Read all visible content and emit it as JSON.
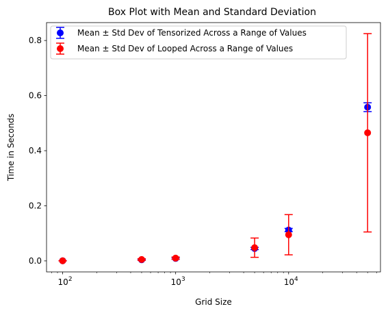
{
  "chart_data": {
    "type": "scatter",
    "title": "Box Plot with Mean and Standard Deviation",
    "xlabel": "Grid Size",
    "ylabel": "Time in Seconds",
    "x_scale": "log",
    "xlim": [
      72,
      65000
    ],
    "ylim": [
      -0.04,
      0.865
    ],
    "x_ticks": [
      {
        "value": 100,
        "base": "10",
        "exp": "2"
      },
      {
        "value": 1000,
        "base": "10",
        "exp": "3"
      },
      {
        "value": 10000,
        "base": "10",
        "exp": "4"
      }
    ],
    "y_ticks": [
      {
        "value": 0.0,
        "label": "0.0"
      },
      {
        "value": 0.2,
        "label": "0.2"
      },
      {
        "value": 0.4,
        "label": "0.4"
      },
      {
        "value": 0.6,
        "label": "0.6"
      },
      {
        "value": 0.8,
        "label": "0.8"
      }
    ],
    "legend_position": "top-right",
    "grid": false,
    "series": [
      {
        "name": "Mean ± Std Dev of Tensorized Across a Range of Values",
        "color": "#0000ff",
        "x": [
          100,
          500,
          1000,
          5000,
          10000,
          50000
        ],
        "mean": [
          0.0005,
          0.004,
          0.009,
          0.045,
          0.112,
          0.558
        ],
        "std": [
          0.0002,
          0.002,
          0.003,
          0.004,
          0.006,
          0.016
        ]
      },
      {
        "name": "Mean ± Std Dev of Looped Across a Range of Values",
        "color": "#ff0000",
        "x": [
          100,
          500,
          1000,
          5000,
          10000,
          50000
        ],
        "mean": [
          0.0004,
          0.005,
          0.01,
          0.048,
          0.095,
          0.465
        ],
        "std": [
          0.0003,
          0.003,
          0.004,
          0.035,
          0.073,
          0.36
        ]
      }
    ]
  }
}
